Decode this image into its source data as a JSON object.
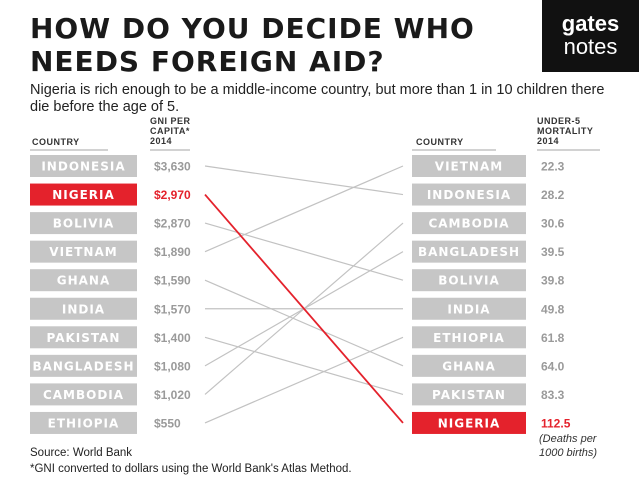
{
  "title": "HOW DO YOU DECIDE WHO NEEDS FOREIGN AID?",
  "subtitle": "Nigeria is rich enough to be a middle-income country, but more than 1 in 10 children there die before the age of 5.",
  "logo": {
    "line1": "gates",
    "line2": "notes"
  },
  "colors": {
    "bar": "#c6c6c6",
    "highlight": "#e4222c",
    "connector": "#c2c2c2",
    "value_text": "#9a9a9a"
  },
  "chart_data": {
    "type": "slope",
    "highlight": "NIGERIA",
    "left": {
      "country_header": "COUNTRY",
      "metric_header": [
        "GNI PER",
        "CAPITA*",
        "2014"
      ],
      "items": [
        {
          "country": "INDONESIA",
          "label": "$3,630",
          "value": 3630
        },
        {
          "country": "NIGERIA",
          "label": "$2,970",
          "value": 2970
        },
        {
          "country": "BOLIVIA",
          "label": "$2,870",
          "value": 2870
        },
        {
          "country": "VIETNAM",
          "label": "$1,890",
          "value": 1890
        },
        {
          "country": "GHANA",
          "label": "$1,590",
          "value": 1590
        },
        {
          "country": "INDIA",
          "label": "$1,570",
          "value": 1570
        },
        {
          "country": "PAKISTAN",
          "label": "$1,400",
          "value": 1400
        },
        {
          "country": "BANGLADESH",
          "label": "$1,080",
          "value": 1080
        },
        {
          "country": "CAMBODIA",
          "label": "$1,020",
          "value": 1020
        },
        {
          "country": "ETHIOPIA",
          "label": "$550",
          "value": 550
        }
      ]
    },
    "right": {
      "country_header": "COUNTRY",
      "metric_header": [
        "UNDER-5",
        "MORTALITY",
        "2014"
      ],
      "note": [
        "(Deaths per",
        "1000 births)"
      ],
      "items": [
        {
          "country": "VIETNAM",
          "label": "22.3",
          "value": 22.3
        },
        {
          "country": "INDONESIA",
          "label": "28.2",
          "value": 28.2
        },
        {
          "country": "CAMBODIA",
          "label": "30.6",
          "value": 30.6
        },
        {
          "country": "BANGLADESH",
          "label": "39.5",
          "value": 39.5
        },
        {
          "country": "BOLIVIA",
          "label": "39.8",
          "value": 39.8
        },
        {
          "country": "INDIA",
          "label": "49.8",
          "value": 49.8
        },
        {
          "country": "ETHIOPIA",
          "label": "61.8",
          "value": 61.8
        },
        {
          "country": "GHANA",
          "label": "64.0",
          "value": 64.0
        },
        {
          "country": "PAKISTAN",
          "label": "83.3",
          "value": 83.3
        },
        {
          "country": "NIGERIA",
          "label": "112.5",
          "value": 112.5
        }
      ]
    }
  },
  "footer": {
    "source": "Source: World Bank",
    "footnote": "*GNI converted to dollars using the World Bank's Atlas Method."
  }
}
